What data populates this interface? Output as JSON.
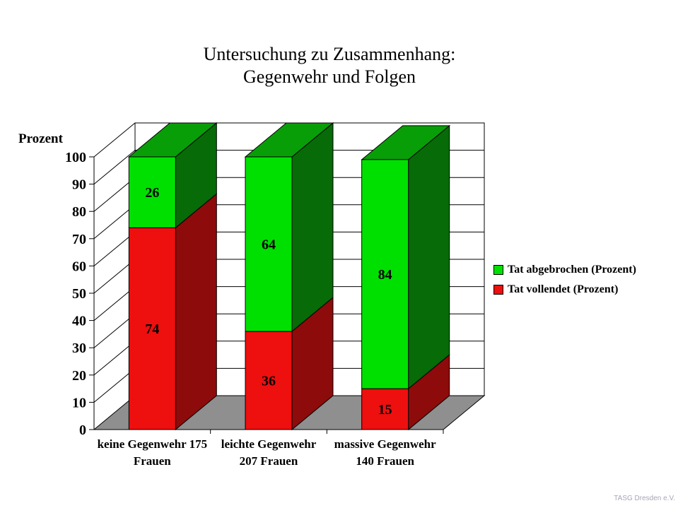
{
  "title": {
    "line1": "Untersuchung zu Zusammenhang:",
    "line2": "Gegenwehr und Folgen"
  },
  "footer": "TASG Dresden e.V.",
  "chart_data": {
    "type": "bar",
    "subtype": "3d-stacked-column",
    "title": "Untersuchung zu Zusammenhang: Gegenwehr und Folgen",
    "xlabel": "",
    "ylabel": "Prozent",
    "ylim": [
      0,
      100
    ],
    "ytick_step": 10,
    "grid": true,
    "legend_position": "right",
    "categories": [
      {
        "line1": "keine Gegenwehr 175",
        "line2": "Frauen"
      },
      {
        "line1": "leichte Gegenwehr",
        "line2": "207 Frauen"
      },
      {
        "line1": "massive Gegenwehr",
        "line2": "140 Frauen"
      }
    ],
    "series": [
      {
        "name": "Tat vollendet (Prozent)",
        "values": [
          74,
          36,
          15
        ],
        "color_front": "#ee0f0f",
        "color_side": "#8e0b0b",
        "color_top": "#b40d0d"
      },
      {
        "name": "Tat abgebrochen (Prozent)",
        "values": [
          26,
          64,
          84
        ],
        "color_front": "#00e000",
        "color_side": "#076b07",
        "color_top": "#089e08"
      }
    ],
    "floor_color": "#8f8f8f",
    "wall_color": "#ffffff"
  }
}
